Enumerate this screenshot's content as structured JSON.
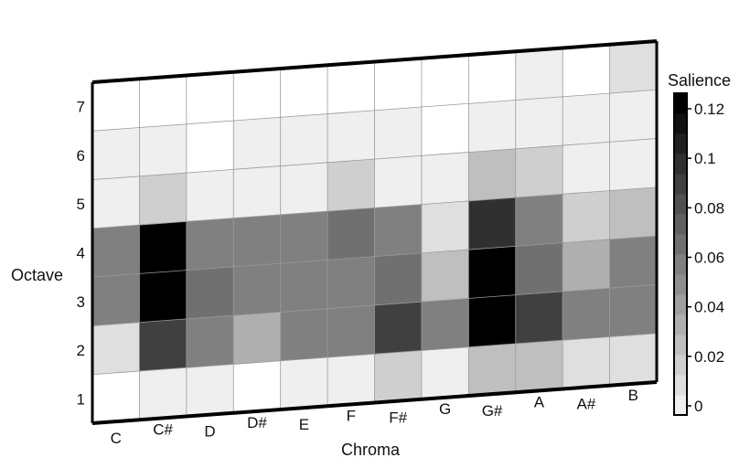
{
  "chart_data": {
    "type": "heatmap",
    "xlabel": "Chroma",
    "ylabel": "Octave",
    "x_categories": [
      "C",
      "C#",
      "D",
      "D#",
      "E",
      "F",
      "F#",
      "G",
      "G#",
      "A",
      "A#",
      "B"
    ],
    "y_categories": [
      "1",
      "2",
      "3",
      "4",
      "5",
      "6",
      "7"
    ],
    "colorbar": {
      "title": "Salience",
      "range": [
        0,
        0.125
      ],
      "ticks": [
        "0",
        "0.02",
        "0.04",
        "0.06",
        "0.08",
        "0.1",
        "0.12"
      ],
      "tick_values": [
        0,
        0.02,
        0.04,
        0.06,
        0.08,
        0.1,
        0.12
      ],
      "steps": 16,
      "colormap": "gray-reversed"
    },
    "values": [
      [
        0.0,
        0.01,
        0.01,
        0.0,
        0.01,
        0.01,
        0.02,
        0.01,
        0.03,
        0.03,
        0.015,
        0.015
      ],
      [
        0.015,
        0.09,
        0.06,
        0.04,
        0.06,
        0.06,
        0.09,
        0.06,
        0.125,
        0.09,
        0.06,
        0.06
      ],
      [
        0.06,
        0.125,
        0.07,
        0.06,
        0.06,
        0.06,
        0.07,
        0.03,
        0.125,
        0.07,
        0.04,
        0.06
      ],
      [
        0.06,
        0.125,
        0.06,
        0.06,
        0.06,
        0.07,
        0.06,
        0.015,
        0.1,
        0.06,
        0.02,
        0.03
      ],
      [
        0.01,
        0.02,
        0.01,
        0.01,
        0.01,
        0.02,
        0.01,
        0.01,
        0.03,
        0.02,
        0.01,
        0.01
      ],
      [
        0.01,
        0.01,
        0.0,
        0.01,
        0.01,
        0.01,
        0.01,
        0.0,
        0.01,
        0.01,
        0.01,
        0.01
      ],
      [
        0.0,
        0.0,
        0.0,
        0.0,
        0.0,
        0.0,
        0.0,
        0.0,
        0.0,
        0.01,
        0.0,
        0.015
      ]
    ],
    "grid": true
  }
}
